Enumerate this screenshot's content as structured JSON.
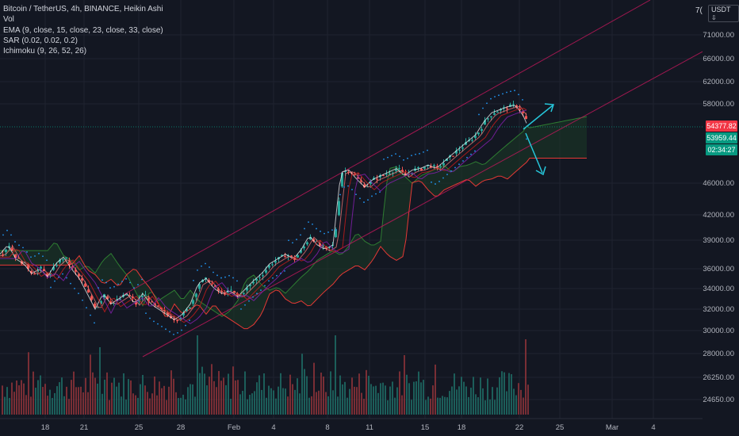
{
  "header": {
    "symbol_line": "Bitcoin / TetherUS, 4h, BINANCE, Heikin Ashi",
    "indicators": [
      "Vol",
      "EMA (9, close, 15, close, 23, close, 33, close)",
      "SAR (0.02, 0.02, 0.2)",
      "Ichimoku (9, 26, 52, 26)"
    ]
  },
  "price_axis": {
    "currency_label": "USDT",
    "currency_glyph": "⇩",
    "top_partial_label": "7(",
    "ticks": [
      {
        "label": "71000.00",
        "value": 71000
      },
      {
        "label": "66000.00",
        "value": 66000
      },
      {
        "label": "62000.00",
        "value": 62000
      },
      {
        "label": "58000.00",
        "value": 58000
      },
      {
        "label": "46000.00",
        "value": 46000
      },
      {
        "label": "42000.00",
        "value": 42000
      },
      {
        "label": "39000.00",
        "value": 39000
      },
      {
        "label": "36000.00",
        "value": 36000
      },
      {
        "label": "34000.00",
        "value": 34000
      },
      {
        "label": "32000.00",
        "value": 32000
      },
      {
        "label": "30000.00",
        "value": 30000
      },
      {
        "label": "28000.00",
        "value": 28000
      },
      {
        "label": "26250.00",
        "value": 26250
      },
      {
        "label": "24650.00",
        "value": 24650
      }
    ],
    "last_price": {
      "label": "54377.82",
      "color": "#f23645"
    },
    "cloud_price": {
      "label": "53959.44",
      "color": "#089981"
    },
    "countdown": {
      "label": "02:34:27",
      "color": "#089981"
    }
  },
  "time_axis": {
    "labels": [
      "18",
      "21",
      "25",
      "28",
      "Feb",
      "4",
      "8",
      "11",
      "15",
      "18",
      "22",
      "25",
      "Mar",
      "4"
    ]
  },
  "colors": {
    "background": "#131722",
    "up": "#26a69a",
    "down": "#ef5350",
    "channel": "#c2185b",
    "cloud_green": "#2e7d32",
    "cloud_red": "#e53935",
    "sar": "#2196f3",
    "arrow": "#26c6da"
  }
}
